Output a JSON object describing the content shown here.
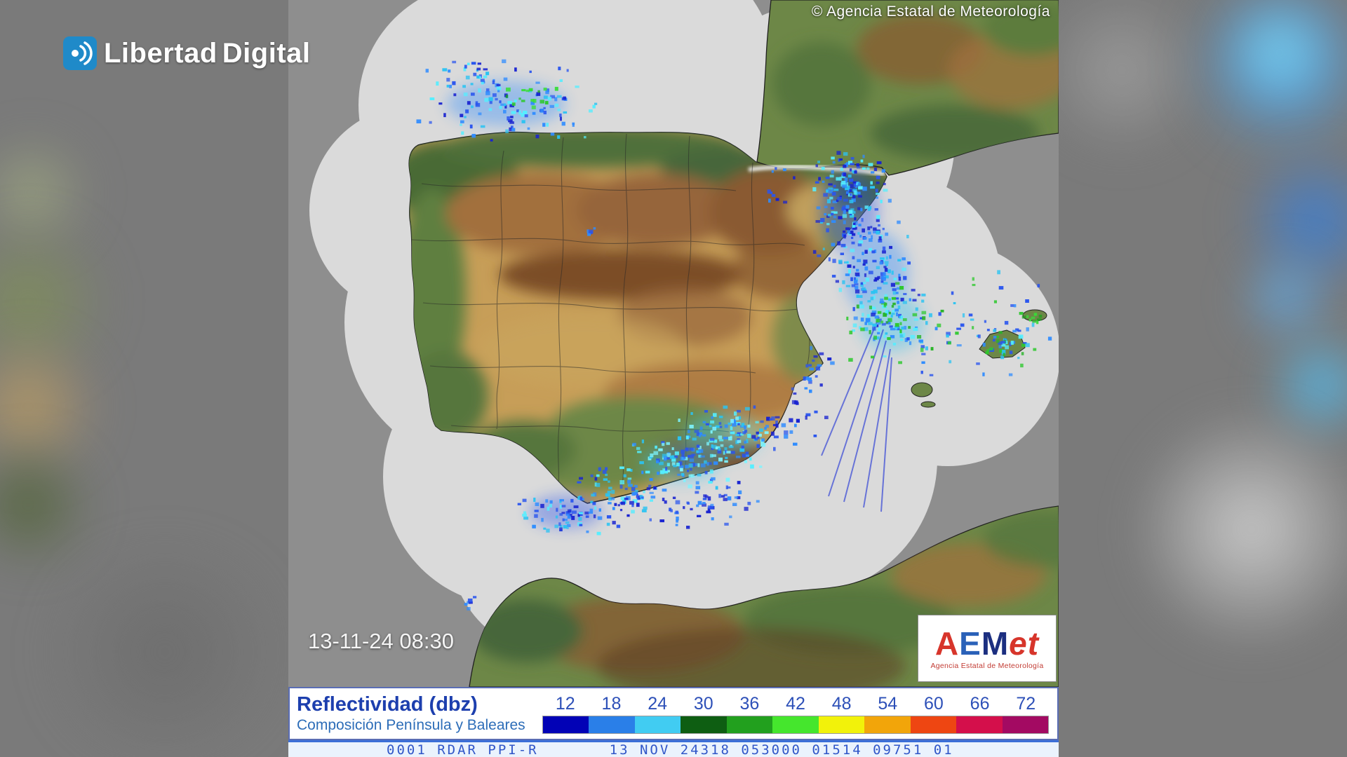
{
  "brand": {
    "part1": "Libertad",
    "part2": "Digital"
  },
  "radar": {
    "copyright": "© Agencia Estatal de Meteorología",
    "timestamp": "13-11-24 08:30"
  },
  "aemet": {
    "letters": [
      {
        "ch": "A",
        "color": "#d7352b",
        "italic": false
      },
      {
        "ch": "E",
        "color": "#2a61b8",
        "italic": false
      },
      {
        "ch": "M",
        "color": "#1c2f80",
        "italic": false
      },
      {
        "ch": "et",
        "color": "#d7352b",
        "italic": true
      }
    ],
    "subtext": "Agencia Estatal de Meteorología"
  },
  "legend": {
    "title": "Reflectividad (dbz)",
    "subtitle": "Composición Península y Baleares",
    "unit_ticks": [
      "12",
      "18",
      "24",
      "30",
      "36",
      "42",
      "48",
      "54",
      "60",
      "66",
      "72"
    ],
    "scale_colors": [
      "#0202b6",
      "#2a7fe8",
      "#41ccf2",
      "#0e5e12",
      "#22a01e",
      "#45e62d",
      "#f2f20a",
      "#f2a50a",
      "#ee4612",
      "#d40f4b",
      "#a30a62"
    ]
  },
  "status_bar": {
    "text": "0001 RDAR PPI-R       13 NOV 24318 053000 01514 09751 01"
  },
  "colors": {
    "sea_grey": "#8e8e8e",
    "coverage_grey": "#dadada",
    "backdrop_grey": "#7a7a7a"
  }
}
